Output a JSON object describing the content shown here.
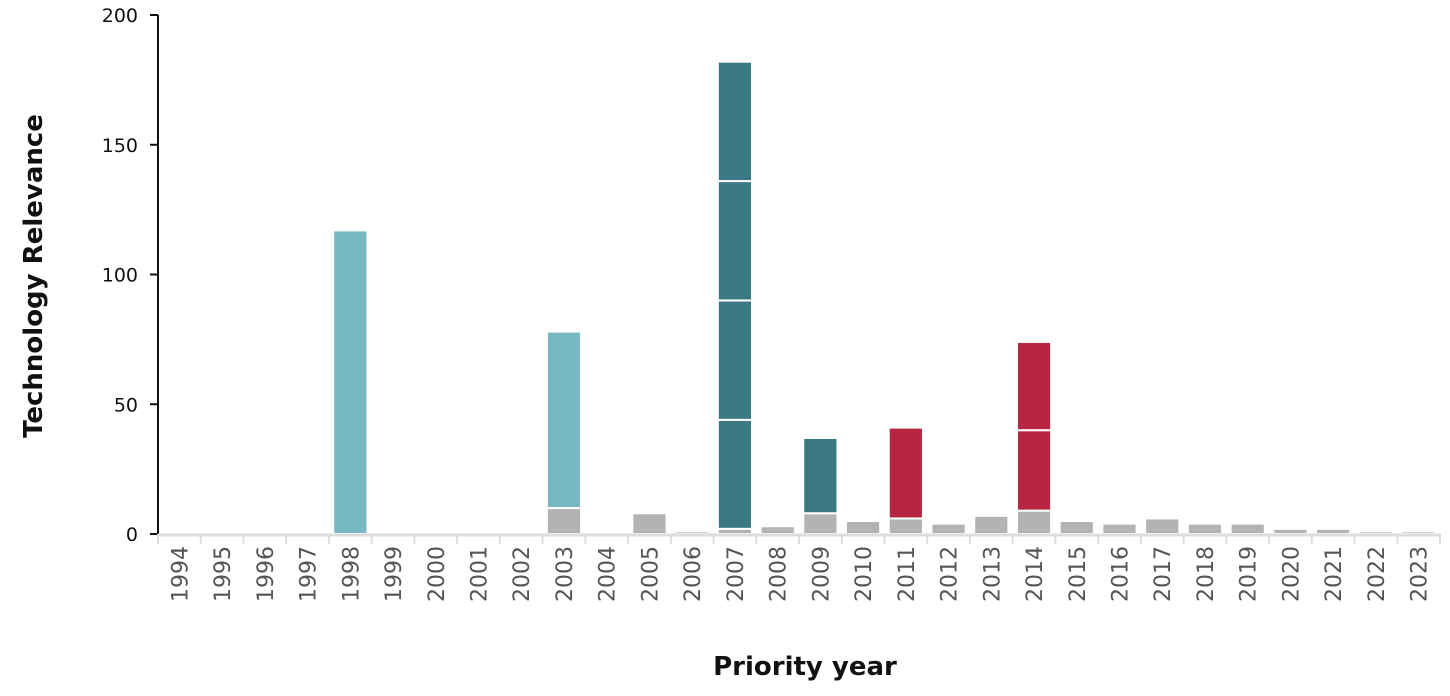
{
  "chart_data": {
    "type": "bar",
    "stacked": true,
    "title": "",
    "xlabel": "Priority year",
    "ylabel": "Technology Relevance",
    "ylim": [
      0,
      200
    ],
    "yticks": [
      0,
      50,
      100,
      150,
      200
    ],
    "grid": false,
    "legend": "none",
    "categories": [
      "1994",
      "1995",
      "1996",
      "1997",
      "1998",
      "1999",
      "2000",
      "2001",
      "2002",
      "2003",
      "2004",
      "2005",
      "2006",
      "2007",
      "2008",
      "2009",
      "2010",
      "2011",
      "2012",
      "2013",
      "2014",
      "2015",
      "2016",
      "2017",
      "2018",
      "2019",
      "2020",
      "2021",
      "2022",
      "2023"
    ],
    "colors": {
      "grey": "#b3b3b3",
      "light_teal": "#78b8c2",
      "dark_teal": "#3a7884",
      "crimson": "#b82540",
      "axis": "#111111",
      "x_axis_line": "#dddddd"
    },
    "bars": {
      "1994": [],
      "1995": [],
      "1996": [],
      "1997": [],
      "1998": [
        {
          "value": 117,
          "color": "light_teal"
        }
      ],
      "1999": [],
      "2000": [],
      "2001": [],
      "2002": [],
      "2003": [
        {
          "value": 10,
          "color": "grey"
        },
        {
          "value": 68,
          "color": "light_teal"
        }
      ],
      "2004": [],
      "2005": [
        {
          "value": 8,
          "color": "grey"
        }
      ],
      "2006": [
        {
          "value": 1,
          "color": "grey"
        }
      ],
      "2007": [
        {
          "value": 2,
          "color": "grey"
        },
        {
          "value": 42,
          "color": "dark_teal"
        },
        {
          "value": 46,
          "color": "dark_teal"
        },
        {
          "value": 46,
          "color": "dark_teal"
        },
        {
          "value": 46,
          "color": "dark_teal"
        }
      ],
      "2008": [
        {
          "value": 3,
          "color": "grey"
        }
      ],
      "2009": [
        {
          "value": 8,
          "color": "grey"
        },
        {
          "value": 29,
          "color": "dark_teal"
        }
      ],
      "2010": [
        {
          "value": 5,
          "color": "grey"
        }
      ],
      "2011": [
        {
          "value": 6,
          "color": "grey"
        },
        {
          "value": 35,
          "color": "crimson"
        }
      ],
      "2012": [
        {
          "value": 4,
          "color": "grey"
        }
      ],
      "2013": [
        {
          "value": 7,
          "color": "grey"
        }
      ],
      "2014": [
        {
          "value": 9,
          "color": "grey"
        },
        {
          "value": 31,
          "color": "crimson"
        },
        {
          "value": 34,
          "color": "crimson"
        }
      ],
      "2015": [
        {
          "value": 5,
          "color": "grey"
        }
      ],
      "2016": [
        {
          "value": 4,
          "color": "grey"
        }
      ],
      "2017": [
        {
          "value": 6,
          "color": "grey"
        }
      ],
      "2018": [
        {
          "value": 4,
          "color": "grey"
        }
      ],
      "2019": [
        {
          "value": 4,
          "color": "grey"
        }
      ],
      "2020": [
        {
          "value": 2,
          "color": "grey"
        }
      ],
      "2021": [
        {
          "value": 2,
          "color": "grey"
        }
      ],
      "2022": [
        {
          "value": 1,
          "color": "grey"
        }
      ],
      "2023": [
        {
          "value": 1,
          "color": "grey"
        }
      ]
    }
  }
}
